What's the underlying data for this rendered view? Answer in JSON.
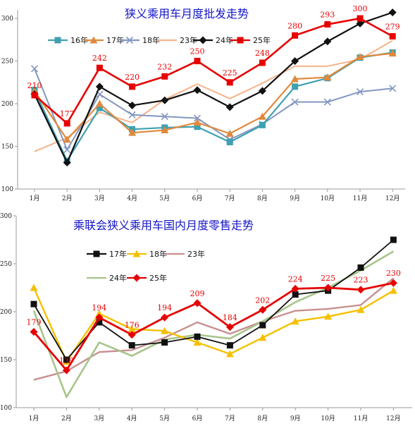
{
  "chart_data": [
    {
      "type": "line",
      "title": "狭义乘用车月度批发走势",
      "categories": [
        "1月",
        "2月",
        "3月",
        "4月",
        "5月",
        "6月",
        "7月",
        "8月",
        "9月",
        "10月",
        "11月",
        "12月"
      ],
      "ylim": [
        100,
        310
      ],
      "yticks": [
        100,
        150,
        200,
        250,
        300
      ],
      "grid": false,
      "legend_position": "top",
      "series": [
        {
          "name": "16年",
          "color": "#3fa0b0",
          "marker": "square",
          "values": [
            216,
            133,
            195,
            170,
            172,
            173,
            155,
            175,
            220,
            230,
            254,
            260
          ]
        },
        {
          "name": "17年",
          "color": "#e0893c",
          "marker": "triangle",
          "values": [
            215,
            158,
            200,
            166,
            169,
            178,
            165,
            185,
            229,
            231,
            255,
            259
          ]
        },
        {
          "name": "18年",
          "color": "#8397c0",
          "marker": "x",
          "values": [
            241,
            146,
            211,
            187,
            185,
            183,
            158,
            176,
            202,
            202,
            214,
            218
          ]
        },
        {
          "name": "23年",
          "color": "#f5b48a",
          "marker": "none",
          "values": [
            144,
            160,
            190,
            178,
            205,
            223,
            206,
            224,
            244,
            244,
            252,
            274
          ]
        },
        {
          "name": "24年",
          "color": "#111111",
          "marker": "diamond",
          "values": [
            211,
            131,
            220,
            198,
            204,
            216,
            196,
            215,
            250,
            273,
            294,
            307
          ]
        },
        {
          "name": "25年",
          "color": "#e60000",
          "marker": "square",
          "values": [
            210,
            177,
            242,
            220,
            232,
            250,
            225,
            248,
            280,
            293,
            300,
            279
          ],
          "data_labels": [
            "210",
            "177",
            "242",
            "220",
            "232",
            "250",
            "225",
            "248",
            "280",
            "293",
            "300",
            "279"
          ]
        }
      ]
    },
    {
      "type": "line",
      "title": "乘联会狭义乘用车国内月度零售走势",
      "categories": [
        "1月",
        "2月",
        "3月",
        "4月",
        "5月",
        "6月",
        "7月",
        "8月",
        "9月",
        "10月",
        "11月",
        "12月"
      ],
      "ylim": [
        100,
        300
      ],
      "yticks": [
        100,
        150,
        200,
        250,
        300
      ],
      "grid": false,
      "legend_position": "top-left",
      "series": [
        {
          "name": "17年",
          "color": "#111111",
          "marker": "square",
          "values": [
            208,
            150,
            189,
            165,
            168,
            174,
            165,
            186,
            218,
            222,
            246,
            275
          ]
        },
        {
          "name": "18年",
          "color": "#f5c000",
          "marker": "triangle",
          "values": [
            225,
            148,
            198,
            182,
            180,
            168,
            156,
            173,
            190,
            195,
            202,
            222
          ]
        },
        {
          "name": "23年",
          "color": "#c89090",
          "marker": "none",
          "values": [
            129,
            138,
            158,
            160,
            173,
            189,
            177,
            190,
            201,
            203,
            207,
            235
          ]
        },
        {
          "name": "24年",
          "color": "#a8c58a",
          "marker": "none",
          "values": [
            201,
            111,
            168,
            154,
            171,
            176,
            172,
            190,
            210,
            225,
            243,
            263
          ]
        },
        {
          "name": "25年",
          "color": "#e60000",
          "marker": "diamond",
          "values": [
            179,
            139,
            194,
            176,
            194,
            209,
            184,
            202,
            224,
            225,
            223,
            230
          ],
          "data_labels": [
            "179",
            "139",
            "194",
            "176",
            "194",
            "209",
            "184",
            "202",
            "224",
            "225",
            "223",
            "230"
          ]
        }
      ]
    }
  ]
}
